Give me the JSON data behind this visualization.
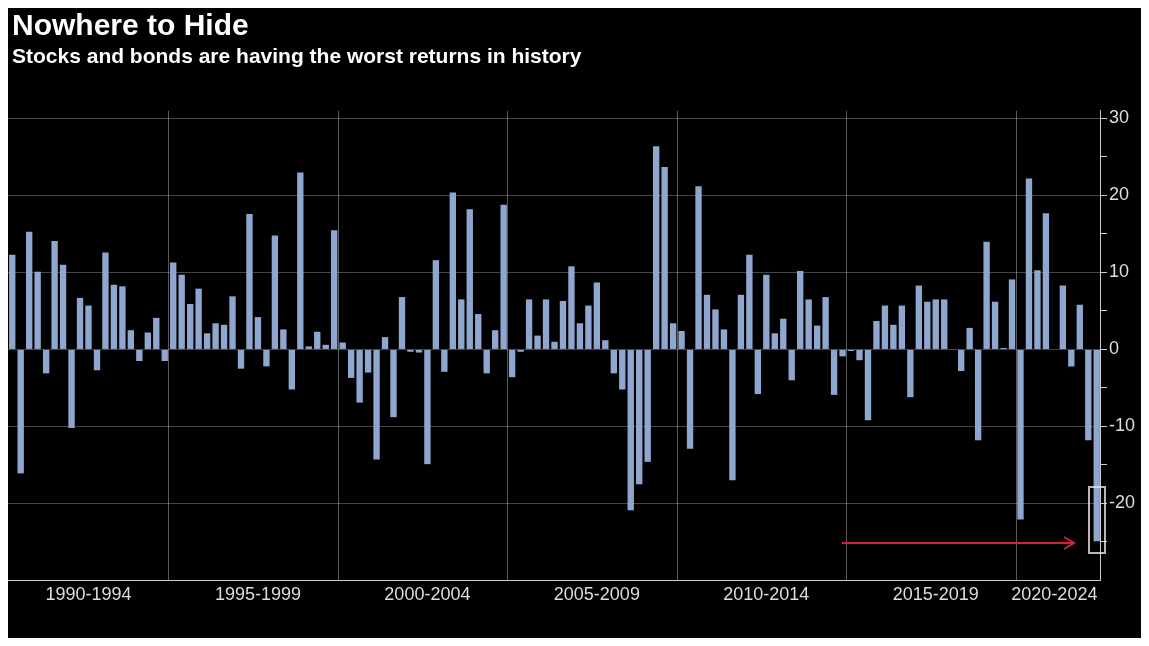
{
  "chart_data": {
    "type": "bar",
    "title": "Nowhere to Hide",
    "subtitle": "Stocks and bonds are having the worst returns in history",
    "categories": [
      null,
      null,
      null,
      null,
      null,
      null,
      null,
      null,
      null,
      "1990-1994",
      null,
      null,
      null,
      null,
      null,
      null,
      null,
      null,
      null,
      null,
      null,
      null,
      null,
      null,
      null,
      null,
      null,
      null,
      null,
      "1995-1999",
      null,
      null,
      null,
      null,
      null,
      null,
      null,
      null,
      null,
      null,
      null,
      null,
      null,
      null,
      null,
      null,
      null,
      null,
      null,
      "2000-2004",
      null,
      null,
      null,
      null,
      null,
      null,
      null,
      null,
      null,
      null,
      null,
      null,
      null,
      null,
      null,
      null,
      null,
      null,
      null,
      "2005-2009",
      null,
      null,
      null,
      null,
      null,
      null,
      null,
      null,
      null,
      null,
      null,
      null,
      null,
      null,
      null,
      null,
      null,
      null,
      null,
      "2010-2014",
      null,
      null,
      null,
      null,
      null,
      null,
      null,
      null,
      null,
      null,
      null,
      null,
      null,
      null,
      null,
      null,
      null,
      null,
      null,
      "2015-2019",
      null,
      null,
      null,
      null,
      null,
      null,
      null,
      null,
      null,
      null,
      null,
      null,
      null,
      "2020-2024",
      null,
      null,
      null,
      null,
      null
    ],
    "series": [
      {
        "color": "#8fa6cf",
        "values": [
          12.3,
          -16.1,
          15.3,
          10.1,
          -3.1,
          14.1,
          11,
          -10.2,
          6.7,
          5.7,
          -2.7,
          12.6,
          8.4,
          8.2,
          2.5,
          -1.5,
          2.2,
          4.1,
          -1.5,
          11.3,
          9.7,
          5.9,
          7.9,
          2.1,
          3.4,
          3.2,
          6.9,
          -2.5,
          17.6,
          4.2,
          -2.2,
          14.8,
          2.6,
          -5.2,
          23,
          0.4,
          2.3,
          0.6,
          15.5,
          0.9,
          -3.7,
          -6.9,
          -3,
          -14.3,
          1.6,
          -8.8,
          6.8,
          -0.3,
          -0.4,
          -14.9,
          11.6,
          -2.9,
          20.4,
          6.5,
          18.2,
          4.6,
          -3.1,
          2.5,
          18.8,
          -3.6,
          -0.3,
          6.5,
          1.8,
          6.5,
          1,
          6.3,
          10.8,
          3.4,
          5.7,
          8.7,
          1.2,
          -3.1,
          -5.2,
          -20.9,
          -17.5,
          -14.6,
          26.4,
          23.7,
          3.4,
          2.4,
          -12.9,
          21.2,
          7.1,
          5.2,
          2.6,
          -17,
          7.1,
          12.3,
          -5.8,
          9.7,
          2.1,
          4,
          -4,
          10.2,
          6.5,
          3.1,
          6.8,
          -5.9,
          -0.9,
          -0.2,
          -1.4,
          -9.2,
          3.7,
          5.7,
          3.2,
          5.7,
          -6.2,
          8.3,
          6.2,
          6.5,
          6.5,
          null,
          -2.8,
          2.8,
          -11.8,
          14,
          6.2,
          0.2,
          9.1,
          -22.1,
          22.2,
          10.3,
          17.7,
          null,
          8.3,
          -2.2,
          5.8,
          -11.8,
          -24.9
        ]
      }
    ],
    "ylim": [
      -30,
      31
    ],
    "yticks": [
      {
        "value": -25,
        "label": null
      },
      -20,
      {
        "value": -15,
        "label": null
      },
      -10,
      {
        "value": -5,
        "label": null
      },
      0,
      {
        "value": 5,
        "label": null
      },
      10,
      {
        "value": 15,
        "label": null
      },
      20,
      {
        "value": 25,
        "label": null
      },
      30
    ],
    "grid": true
  }
}
